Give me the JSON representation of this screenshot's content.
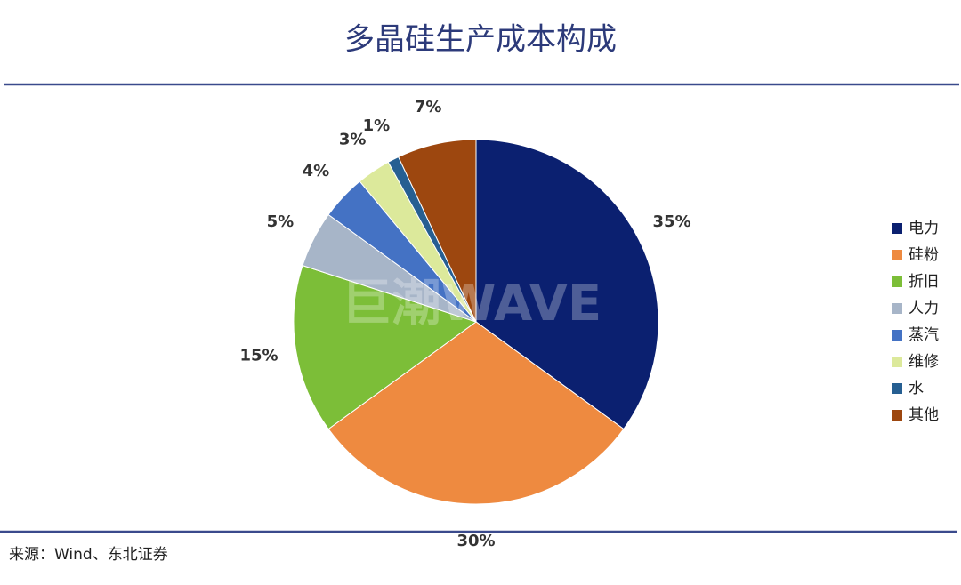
{
  "chart_data": {
    "type": "pie",
    "title": "多晶硅生产成本构成",
    "categories": [
      "电力",
      "硅粉",
      "折旧",
      "人力",
      "蒸汽",
      "维修",
      "水",
      "其他"
    ],
    "values": [
      35,
      30,
      15,
      5,
      4,
      3,
      1,
      7
    ],
    "value_labels": [
      "35%",
      "30%",
      "15%",
      "5%",
      "4%",
      "3%",
      "1%",
      "7%"
    ],
    "colors": [
      "#0b2070",
      "#ee8a40",
      "#7cbe38",
      "#a7b5c8",
      "#4472c4",
      "#dce99b",
      "#265f92",
      "#9d470f"
    ],
    "legend": "right",
    "watermark": "巨潮WAVE",
    "source": "来源：Wind、东北证券"
  }
}
